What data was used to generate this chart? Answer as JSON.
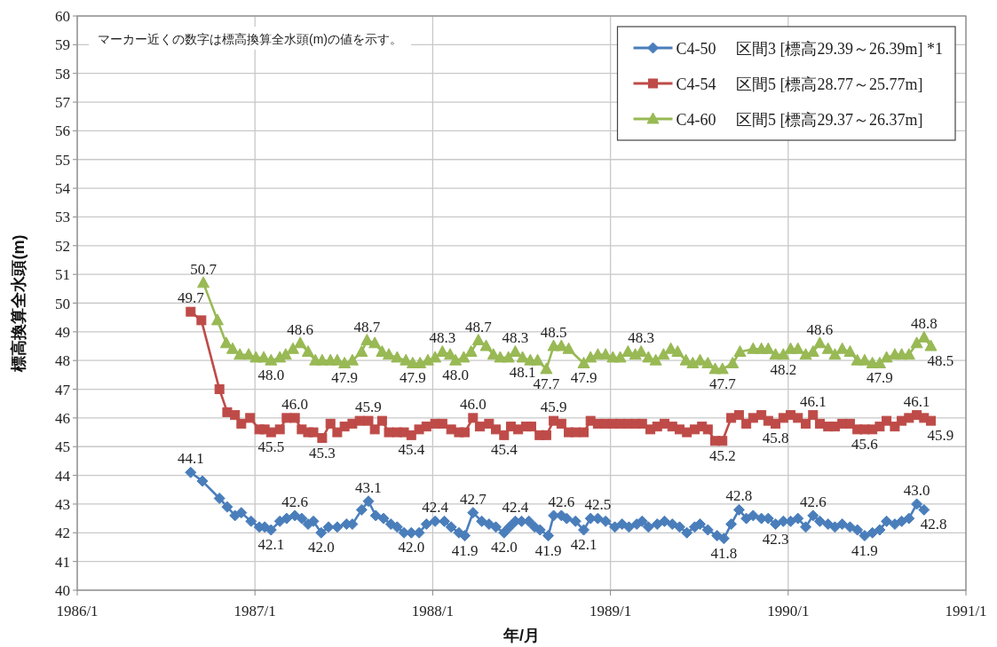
{
  "chart_data": {
    "type": "line",
    "xlabel": "年/月",
    "ylabel": "標高換算全水頭(m)",
    "xlim": [
      "1986-01",
      "1991-01"
    ],
    "ylim": [
      40,
      60
    ],
    "xticks": [
      {
        "value": "1986-01",
        "label": "1986/1"
      },
      {
        "value": "1987-01",
        "label": "1987/1"
      },
      {
        "value": "1988-01",
        "label": "1988/1"
      },
      {
        "value": "1989-01",
        "label": "1989/1"
      },
      {
        "value": "1990-01",
        "label": "1990/1"
      },
      {
        "value": "1991-01",
        "label": "1991/1"
      }
    ],
    "yticks": [
      40,
      41,
      42,
      43,
      44,
      45,
      46,
      47,
      48,
      49,
      50,
      51,
      52,
      53,
      54,
      55,
      56,
      57,
      58,
      59,
      60
    ],
    "grid": true,
    "legend": "top right",
    "annotations": [
      "マーカー近くの数字は標高換算全水頭(m)の値を示す。"
    ],
    "series": [
      {
        "name": "C4-50　 区間3 [標高29.39～26.39m] *1",
        "color": "#4a7ebb",
        "marker": "diamond",
        "x": [
          "1986-08-22",
          "1986-09-15",
          "1986-10-20",
          "1986-11-05",
          "1986-11-21",
          "1986-12-04",
          "1986-12-24",
          "1987-01-10",
          "1987-01-21",
          "1987-02-03",
          "1987-02-21",
          "1987-03-07",
          "1987-03-24",
          "1987-04-07",
          "1987-04-20",
          "1987-05-01",
          "1987-05-17",
          "1987-06-01",
          "1987-06-19",
          "1987-07-08",
          "1987-07-20",
          "1987-08-08",
          "1987-08-22",
          "1987-09-06",
          "1987-09-22",
          "1987-10-07",
          "1987-10-20",
          "1987-11-03",
          "1987-11-18",
          "1987-12-04",
          "1987-12-19",
          "1988-01-06",
          "1988-01-25",
          "1988-02-08",
          "1988-02-24",
          "1988-03-07",
          "1988-03-24",
          "1988-04-11",
          "1988-04-26",
          "1988-05-10",
          "1988-05-27",
          "1988-06-07",
          "1988-06-19",
          "1988-07-02",
          "1988-07-17",
          "1988-07-29",
          "1988-08-09",
          "1988-08-26",
          "1988-09-06",
          "1988-09-22",
          "1988-10-03",
          "1988-10-21",
          "1988-11-07",
          "1988-11-21",
          "1988-12-06",
          "1988-12-22",
          "1989-01-10",
          "1989-01-25",
          "1989-02-08",
          "1989-02-24",
          "1989-03-07",
          "1989-03-20",
          "1989-04-07",
          "1989-04-22",
          "1989-05-08",
          "1989-05-23",
          "1989-06-07",
          "1989-06-23",
          "1989-07-04",
          "1989-07-20",
          "1989-08-08",
          "1989-08-22",
          "1989-09-06",
          "1989-09-22",
          "1989-10-07",
          "1989-10-21",
          "1989-11-07",
          "1989-11-21",
          "1989-12-06",
          "1989-12-22",
          "1990-01-06",
          "1990-01-21",
          "1990-02-06",
          "1990-02-21",
          "1990-03-07",
          "1990-03-24",
          "1990-04-07",
          "1990-04-22",
          "1990-05-08",
          "1990-05-23",
          "1990-06-07",
          "1990-06-23",
          "1990-07-08",
          "1990-07-22",
          "1990-08-08",
          "1990-08-22",
          "1990-09-06",
          "1990-09-22",
          "1990-10-07"
        ],
        "values": [
          44.1,
          43.8,
          43.2,
          42.9,
          42.6,
          42.7,
          42.4,
          42.2,
          42.2,
          42.1,
          42.4,
          42.5,
          42.6,
          42.5,
          42.3,
          42.4,
          42.0,
          42.2,
          42.2,
          42.3,
          42.3,
          42.8,
          43.1,
          42.6,
          42.5,
          42.3,
          42.2,
          42.0,
          42.0,
          42.0,
          42.3,
          42.4,
          42.4,
          42.2,
          42.0,
          41.9,
          42.7,
          42.4,
          42.3,
          42.2,
          42.0,
          42.2,
          42.4,
          42.4,
          42.4,
          42.2,
          42.1,
          41.9,
          42.6,
          42.6,
          42.5,
          42.4,
          42.1,
          42.5,
          42.5,
          42.4,
          42.2,
          42.3,
          42.2,
          42.3,
          42.4,
          42.2,
          42.3,
          42.4,
          42.3,
          42.2,
          42.0,
          42.2,
          42.3,
          42.1,
          41.9,
          41.8,
          42.3,
          42.8,
          42.5,
          42.6,
          42.5,
          42.5,
          42.3,
          42.4,
          42.4,
          42.5,
          42.2,
          42.6,
          42.4,
          42.3,
          42.2,
          42.3,
          42.2,
          42.1,
          41.9,
          42.0,
          42.1,
          42.4,
          42.3,
          42.4,
          42.5,
          43.0,
          42.8
        ],
        "value_labels": [
          "44.1",
          null,
          null,
          null,
          null,
          null,
          null,
          null,
          null,
          "42.1",
          null,
          null,
          "42.6",
          null,
          null,
          null,
          "42.0",
          null,
          null,
          null,
          null,
          null,
          "43.1",
          null,
          null,
          null,
          null,
          null,
          "42.0",
          null,
          null,
          "42.4",
          null,
          null,
          null,
          "41.9",
          "42.7",
          null,
          null,
          null,
          "42.0",
          null,
          "42.4",
          null,
          null,
          null,
          null,
          "41.9",
          null,
          "42.6",
          null,
          null,
          "42.1",
          null,
          "42.5",
          null,
          null,
          null,
          null,
          null,
          null,
          null,
          null,
          null,
          null,
          null,
          null,
          null,
          null,
          null,
          null,
          "41.8",
          null,
          "42.8",
          null,
          null,
          null,
          null,
          "42.3",
          null,
          null,
          null,
          null,
          "42.6",
          null,
          null,
          null,
          null,
          null,
          null,
          "41.9",
          null,
          null,
          null,
          null,
          null,
          null,
          "43.0",
          "42.8"
        ]
      },
      {
        "name": "C4-54　 区間5 [標高28.77～25.77m]",
        "color": "#be4b48",
        "marker": "square",
        "x": [
          "1986-08-22",
          "1986-09-13",
          "1986-10-20",
          "1986-11-05",
          "1986-11-21",
          "1986-12-04",
          "1986-12-22",
          "1987-01-10",
          "1987-01-21",
          "1987-02-03",
          "1987-02-21",
          "1987-03-07",
          "1987-03-24",
          "1987-04-07",
          "1987-04-20",
          "1987-05-01",
          "1987-05-19",
          "1987-06-05",
          "1987-06-19",
          "1987-07-04",
          "1987-07-20",
          "1987-08-04",
          "1987-08-22",
          "1987-09-04",
          "1987-09-19",
          "1987-10-03",
          "1987-10-20",
          "1987-11-03",
          "1987-11-18",
          "1987-12-04",
          "1987-12-19",
          "1988-01-06",
          "1988-01-21",
          "1988-02-08",
          "1988-02-24",
          "1988-03-07",
          "1988-03-24",
          "1988-04-07",
          "1988-04-26",
          "1988-05-10",
          "1988-05-27",
          "1988-06-10",
          "1988-06-25",
          "1988-07-11",
          "1988-07-22",
          "1988-08-08",
          "1988-08-22",
          "1988-09-06",
          "1988-09-22",
          "1988-10-07",
          "1988-10-21",
          "1988-11-07",
          "1988-11-21",
          "1988-12-06",
          "1988-12-22",
          "1989-01-06",
          "1989-01-21",
          "1989-02-06",
          "1989-02-21",
          "1989-03-07",
          "1989-03-24",
          "1989-04-07",
          "1989-04-22",
          "1989-05-08",
          "1989-05-23",
          "1989-06-07",
          "1989-06-23",
          "1989-07-08",
          "1989-07-20",
          "1989-08-04",
          "1989-08-19",
          "1989-09-06",
          "1989-09-22",
          "1989-10-07",
          "1989-10-21",
          "1989-11-07",
          "1989-11-21",
          "1989-12-06",
          "1989-12-22",
          "1990-01-06",
          "1990-01-21",
          "1990-02-06",
          "1990-02-21",
          "1990-03-07",
          "1990-03-24",
          "1990-04-07",
          "1990-04-22",
          "1990-05-08",
          "1990-05-23",
          "1990-06-07",
          "1990-06-23",
          "1990-07-08",
          "1990-07-22",
          "1990-08-08",
          "1990-08-22",
          "1990-09-06",
          "1990-09-22",
          "1990-10-07",
          "1990-10-21"
        ],
        "values": [
          49.7,
          49.4,
          47.0,
          46.2,
          46.1,
          45.8,
          46.0,
          45.6,
          45.6,
          45.5,
          45.6,
          46.0,
          46.0,
          45.6,
          45.5,
          45.5,
          45.3,
          45.8,
          45.5,
          45.7,
          45.8,
          45.9,
          45.9,
          45.6,
          45.9,
          45.5,
          45.5,
          45.5,
          45.4,
          45.6,
          45.7,
          45.8,
          45.8,
          45.6,
          45.5,
          45.5,
          46.0,
          45.7,
          45.8,
          45.6,
          45.4,
          45.7,
          45.6,
          45.7,
          45.7,
          45.4,
          45.4,
          45.9,
          45.8,
          45.5,
          45.5,
          45.5,
          45.9,
          45.8,
          45.8,
          45.8,
          45.8,
          45.8,
          45.8,
          45.8,
          45.6,
          45.7,
          45.8,
          45.7,
          45.6,
          45.5,
          45.6,
          45.7,
          45.6,
          45.2,
          45.2,
          46.0,
          46.1,
          45.8,
          46.0,
          46.1,
          45.9,
          45.8,
          46.0,
          46.1,
          46.0,
          45.8,
          46.1,
          45.8,
          45.7,
          45.7,
          45.8,
          45.8,
          45.6,
          45.6,
          45.6,
          45.7,
          45.9,
          45.7,
          45.9,
          46.0,
          46.1,
          46.0,
          45.9
        ],
        "value_labels": [
          "49.7",
          null,
          null,
          null,
          null,
          null,
          null,
          null,
          null,
          "45.5",
          null,
          null,
          "46.0",
          null,
          null,
          null,
          "45.3",
          null,
          null,
          null,
          null,
          null,
          "45.9",
          null,
          null,
          null,
          null,
          null,
          "45.4",
          null,
          null,
          null,
          null,
          null,
          null,
          null,
          "46.0",
          null,
          null,
          null,
          "45.4",
          null,
          null,
          null,
          null,
          null,
          null,
          "45.9",
          null,
          null,
          null,
          null,
          null,
          null,
          null,
          null,
          null,
          null,
          null,
          null,
          null,
          null,
          null,
          null,
          null,
          null,
          null,
          null,
          null,
          null,
          "45.2",
          null,
          null,
          null,
          null,
          null,
          null,
          "45.8",
          null,
          null,
          null,
          null,
          "46.1",
          null,
          null,
          null,
          null,
          null,
          null,
          "45.6",
          null,
          null,
          null,
          null,
          null,
          null,
          "46.1",
          null,
          "45.9"
        ]
      },
      {
        "name": "C4-60　 区間5 [標高29.37～26.37m]",
        "color": "#98b954",
        "marker": "triangle",
        "x": [
          "1986-09-17",
          "1986-10-16",
          "1986-11-03",
          "1986-11-16",
          "1986-12-01",
          "1986-12-19",
          "1987-01-03",
          "1987-01-19",
          "1987-02-03",
          "1987-02-21",
          "1987-03-05",
          "1987-03-20",
          "1987-04-04",
          "1987-04-20",
          "1987-05-05",
          "1987-05-19",
          "1987-06-05",
          "1987-06-19",
          "1987-07-04",
          "1987-07-20",
          "1987-08-08",
          "1987-08-19",
          "1987-09-04",
          "1987-09-19",
          "1987-10-03",
          "1987-10-20",
          "1987-11-07",
          "1987-11-21",
          "1987-12-06",
          "1987-12-22",
          "1988-01-06",
          "1988-01-21",
          "1988-02-06",
          "1988-02-17",
          "1988-03-05",
          "1988-03-20",
          "1988-04-04",
          "1988-04-20",
          "1988-05-05",
          "1988-05-19",
          "1988-06-05",
          "1988-06-19",
          "1988-07-04",
          "1988-07-20",
          "1988-08-04",
          "1988-08-22",
          "1988-09-06",
          "1988-09-22",
          "1988-10-07",
          "1988-11-07",
          "1988-11-21",
          "1988-12-06",
          "1988-12-22",
          "1989-01-06",
          "1989-01-21",
          "1989-02-06",
          "1989-02-21",
          "1989-03-05",
          "1989-03-20",
          "1989-04-04",
          "1989-04-20",
          "1989-05-05",
          "1989-05-19",
          "1989-06-05",
          "1989-06-19",
          "1989-07-04",
          "1989-07-20",
          "1989-08-04",
          "1989-08-19",
          "1989-09-09",
          "1989-09-24",
          "1989-10-21",
          "1989-11-07",
          "1989-11-21",
          "1989-12-06",
          "1989-12-22",
          "1990-01-06",
          "1990-01-21",
          "1990-02-06",
          "1990-02-21",
          "1990-03-07",
          "1990-03-24",
          "1990-04-07",
          "1990-04-22",
          "1990-05-08",
          "1990-05-23",
          "1990-06-07",
          "1990-06-23",
          "1990-07-08",
          "1990-07-22",
          "1990-08-08",
          "1990-08-22",
          "1990-09-06",
          "1990-09-22",
          "1990-10-07",
          "1990-10-21"
        ],
        "values": [
          50.7,
          49.4,
          48.6,
          48.4,
          48.2,
          48.2,
          48.1,
          48.1,
          48.0,
          48.1,
          48.2,
          48.4,
          48.6,
          48.3,
          48.0,
          48.0,
          48.0,
          48.0,
          47.9,
          48.0,
          48.3,
          48.7,
          48.6,
          48.3,
          48.2,
          48.1,
          48.0,
          47.9,
          47.9,
          48.0,
          48.1,
          48.3,
          48.2,
          48.0,
          48.1,
          48.3,
          48.7,
          48.5,
          48.2,
          48.1,
          48.1,
          48.3,
          48.1,
          48.0,
          48.0,
          47.7,
          48.5,
          48.5,
          48.4,
          47.9,
          48.1,
          48.2,
          48.2,
          48.1,
          48.1,
          48.3,
          48.2,
          48.3,
          48.1,
          48.0,
          48.2,
          48.4,
          48.3,
          48.0,
          47.9,
          48.0,
          47.9,
          47.7,
          47.7,
          47.9,
          48.3,
          48.4,
          48.4,
          48.4,
          48.2,
          48.2,
          48.4,
          48.4,
          48.2,
          48.3,
          48.6,
          48.4,
          48.2,
          48.4,
          48.3,
          48.0,
          48.0,
          47.9,
          47.9,
          48.1,
          48.2,
          48.2,
          48.2,
          48.6,
          48.8,
          48.5
        ],
        "value_labels": [
          "50.7",
          null,
          null,
          null,
          null,
          null,
          null,
          null,
          "48.0",
          null,
          null,
          null,
          "48.6",
          null,
          null,
          null,
          null,
          null,
          "47.9",
          null,
          null,
          "48.7",
          null,
          null,
          null,
          null,
          null,
          "47.9",
          null,
          null,
          null,
          "48.3",
          null,
          "48.0",
          null,
          null,
          "48.7",
          null,
          null,
          null,
          null,
          "48.3",
          "48.1",
          null,
          null,
          "47.7",
          "48.5",
          null,
          null,
          "47.9",
          null,
          null,
          null,
          null,
          null,
          null,
          null,
          "48.3",
          null,
          null,
          null,
          null,
          null,
          null,
          null,
          null,
          null,
          null,
          "47.7",
          null,
          null,
          null,
          null,
          null,
          null,
          "48.2",
          null,
          null,
          null,
          null,
          "48.6",
          null,
          null,
          null,
          null,
          null,
          null,
          null,
          "47.9",
          null,
          null,
          null,
          null,
          null,
          "48.8",
          "48.5"
        ]
      }
    ]
  }
}
